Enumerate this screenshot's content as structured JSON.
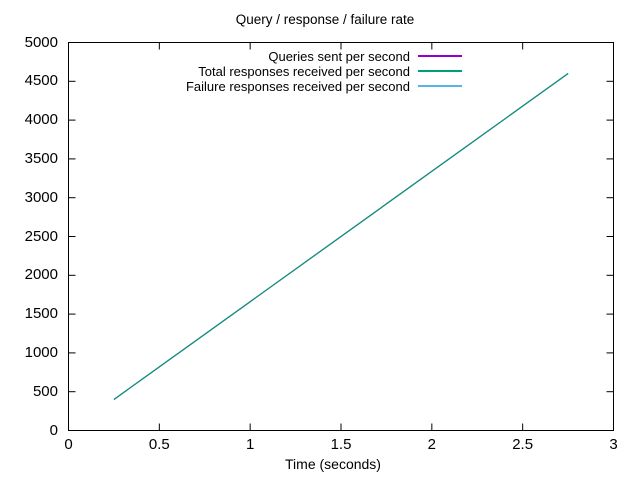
{
  "figure": {
    "background": "#ffffff",
    "axis_color": "#000000",
    "text_color": "#000000"
  },
  "chart_data": {
    "type": "line",
    "title": "Query / response / failure rate",
    "xlabel": "Time (seconds)",
    "ylabel": "",
    "xlim": [
      0,
      3
    ],
    "ylim": [
      0,
      5000
    ],
    "xticks": [
      "0",
      "0.5",
      "1",
      "1.5",
      "2",
      "2.5",
      "3"
    ],
    "yticks": [
      "0",
      "500",
      "1000",
      "1500",
      "2000",
      "2500",
      "3000",
      "3500",
      "4000",
      "4500",
      "5000"
    ],
    "grid": false,
    "tick_style": "inward-mirrored-all-borders",
    "legend_position": "top-center-inside",
    "series": [
      {
        "name": "Queries sent per second",
        "color": "#9400d3",
        "x": [
          0.25,
          2.75
        ],
        "values": [
          400,
          4600
        ]
      },
      {
        "name": "Total responses received per second",
        "color": "#009e73",
        "x": [
          0.25,
          2.75
        ],
        "values": [
          400,
          4600
        ]
      },
      {
        "name": "Failure responses received per second",
        "color": "#56b4e9",
        "x": [],
        "values": []
      }
    ]
  }
}
